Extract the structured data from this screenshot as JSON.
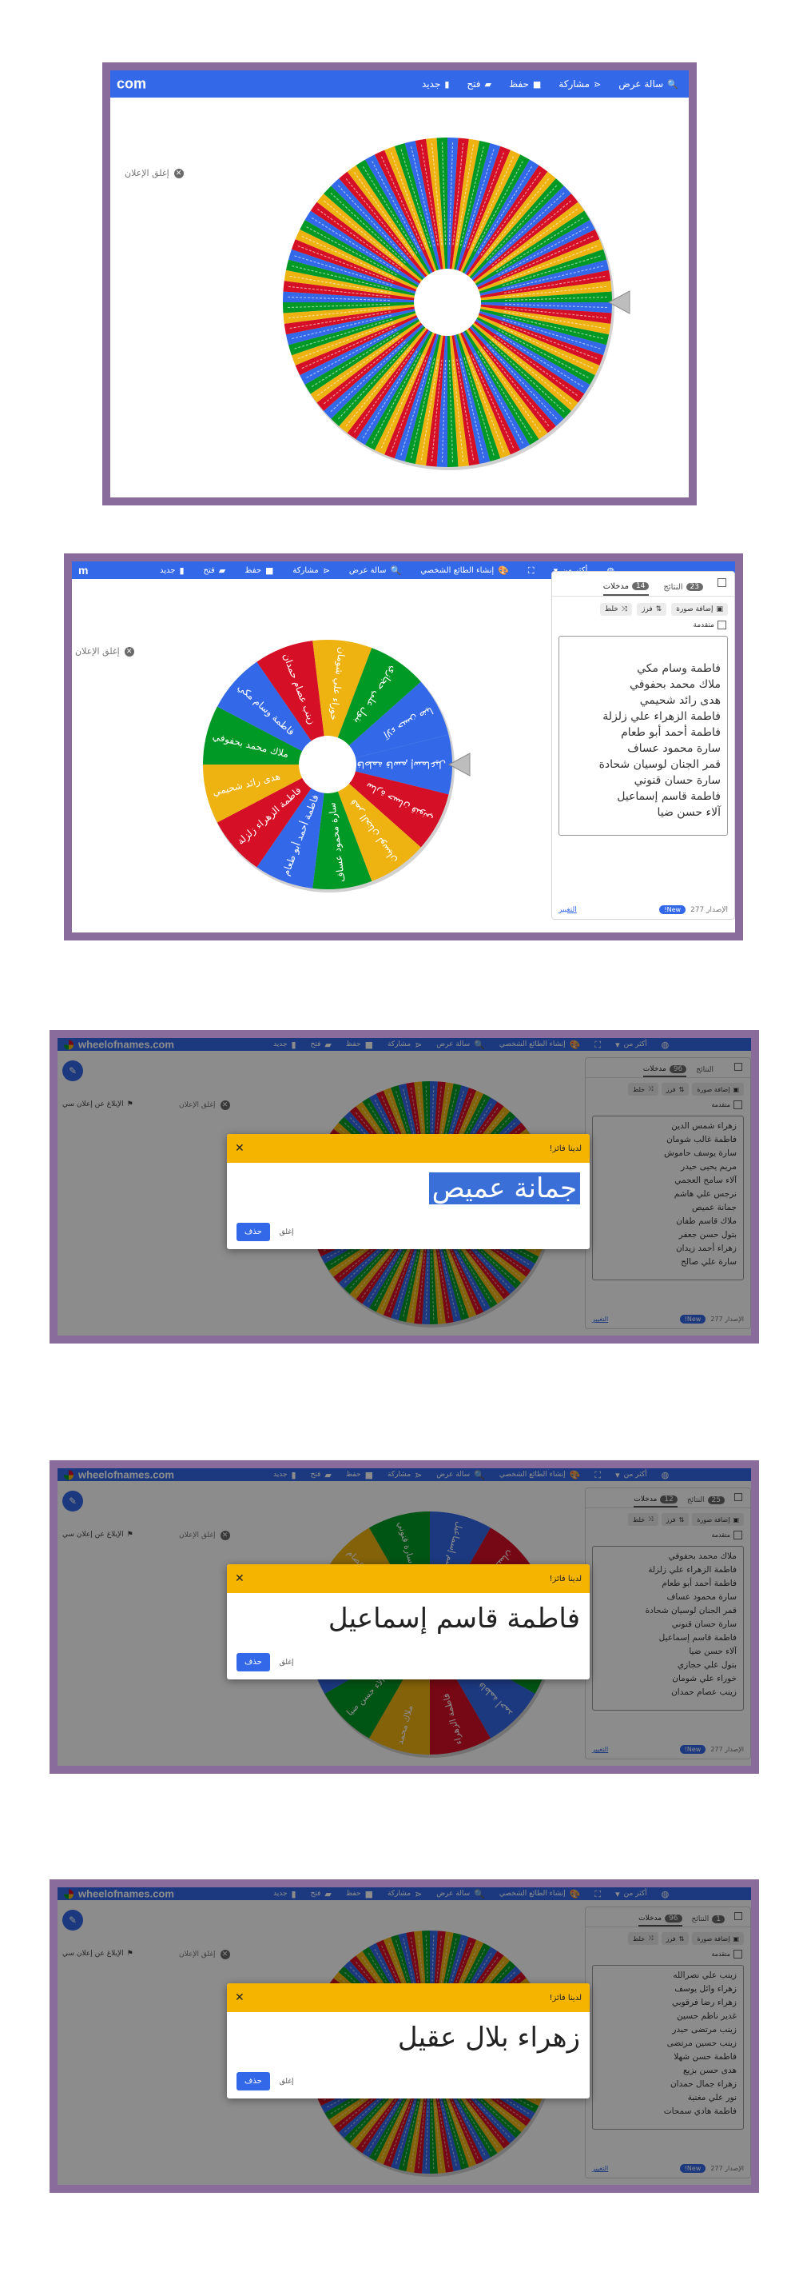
{
  "toolbar": {
    "new": "جديد",
    "open": "فتح",
    "save": "حفظ",
    "share": "مشاركة",
    "gallery": "سالة عرض",
    "create_title": "إنشاء الطائع الشخصي",
    "fullscreen": "",
    "more": "أكثر من",
    "language": "",
    "brand_partial_1": "com",
    "brand_partial_2": "m",
    "brand": "wheelofnames.com"
  },
  "close_ad": "إغلق الإعلان",
  "report_ad": "الإبلاغ عن إعلان سي",
  "panel": {
    "tab_entries": "مدخلات",
    "tab_results": "النتائج",
    "toggle_hide": "",
    "shuffle": "خلط",
    "sort": "فرز",
    "add_image": "إضافة صورة",
    "advanced": "متقدمة",
    "version": "الإصدار 277",
    "new_badge": "New!",
    "changelog": "التغيير"
  },
  "shots": [
    {
      "entries_count": "",
      "results_count": "",
      "names": []
    },
    {
      "entries_count": "14",
      "results_count": "23",
      "names": [
        "فاطمة وسام مكي",
        "ملاك محمد بحفوفي",
        "هدى رائد شحيمي",
        "فاطمة الزهراء علي زلزلة",
        "فاطمة أحمد أبو طعام",
        "سارة محمود عساف",
        "قمر الجنان لوسيان شحادة",
        "سارة حسان قنوني",
        "فاطمة قاسم إسماعيل",
        "آلاء حسن ضيا"
      ]
    },
    {
      "entries_count": "96",
      "results_count": "",
      "names": [
        "زهراء شمس الدين",
        "فاطمة غالب شومان",
        "سارة يوسف حاموش",
        "مريم يحيى حيدر",
        "آلاء سامح العجمي",
        "نرجس علي هاشم",
        "جمانة عميص",
        "ملاك قاسم طفان",
        "بتول حسن جعفر",
        "زهراء أحمد زيدان",
        "سارة علي صالح"
      ]
    },
    {
      "entries_count": "12",
      "results_count": "25",
      "names": [
        "ملاك محمد بحفوفي",
        "فاطمة الزهراء علي زلزلة",
        "فاطمة أحمد أبو طعام",
        "سارة محمود عساف",
        "قمر الجنان لوسيان شحادة",
        "سارة حسان قنوني",
        "فاطمة قاسم إسماعيل",
        "آلاء حسن ضيا",
        "بتول علي حجازي",
        "خوراء علي شومان",
        "زينب عصام حمدان"
      ]
    },
    {
      "entries_count": "96",
      "results_count": "1",
      "names": [
        "زينب علي نصرالله",
        "زهراء وائل يوسف",
        "زهراء رضا فرقوبي",
        "غدير ناظم حسين",
        "زينب مرتضى حيدر",
        "زينب حسين مرتضى",
        "فاطمة حسن شهلا",
        "هدى حسن بزيع",
        "زهراء جمال حمدان",
        "نور علي مغنية",
        "فاطمة هادي سمحات"
      ]
    }
  ],
  "wheel2_labels": [
    "فاطمة قاسم إسماعيل",
    "سارة حسان قنوني",
    "قمر الجنان لوسيان",
    "سارة محمود عساف",
    "فاطمة أحمد أبو طعام",
    "فاطمة الزهراء زلزلة",
    "هدى رائد شحيمي",
    "ملاك محمد بحفوفي",
    "فاطمة وسام مكي",
    "زينب عصام حمدان",
    "خوراء علي شومان",
    "بتول علي حجازي",
    "آلاء حسن ضيا"
  ],
  "wheel4_labels": [
    "فاطمة قاسم إسماعيل",
    "سارة حسان",
    "قمر الجنان",
    "سارة محمود",
    "فاطمة أحمد",
    "فاطمة الزهراء",
    "ملاك محمد",
    "آلاء حسن ضيا",
    "بتول علي",
    "خوراء علي",
    "زينب عصام",
    "سارة قنوني"
  ],
  "dialog": {
    "title": "لدينا فائز!",
    "remove": "حذف",
    "ok": "إغلق"
  },
  "winners": [
    "جمانة عميص",
    "فاطمة قاسم إسماعيل",
    "زهراء بلال عقيل"
  ],
  "colors": {
    "blue": "#3369e8",
    "red": "#d50f25",
    "yellow": "#eeb211",
    "green": "#009925",
    "frame": "#8a6c9c",
    "dialog_header": "#f4b400"
  }
}
